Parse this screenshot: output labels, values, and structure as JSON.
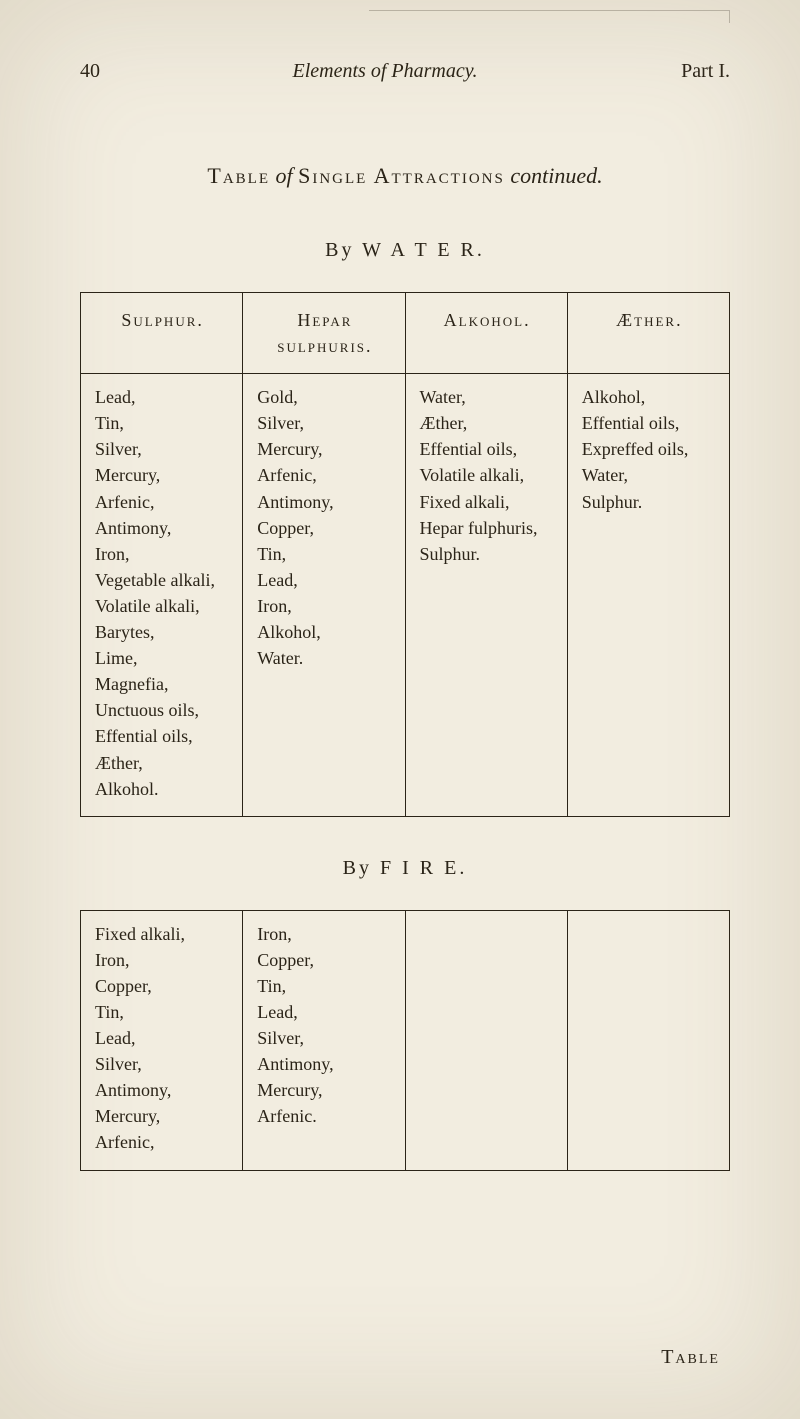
{
  "colors": {
    "paper": "#f2ede0",
    "ink": "#2b2418",
    "border": "#2b2418"
  },
  "header": {
    "page_number": "40",
    "running_title": "Elements of Pharmacy.",
    "part": "Part I."
  },
  "title": {
    "prefix": "Table",
    "of": "of",
    "subject": "Single Attractions",
    "suffix": "continued."
  },
  "tables": [
    {
      "by": "By  W A T E R.",
      "columns": [
        "Sulphur.",
        "Hepar sulphuris.",
        "Alkohol.",
        "Æther."
      ],
      "rows": [
        [
          "Lead,",
          "Gold,",
          "Water,",
          "Alkohol,"
        ],
        [
          "Tin,",
          "Silver,",
          "Æther,",
          "Effential oils,"
        ],
        [
          "Silver,",
          "Mercury,",
          "Effential oils,",
          "Expreffed oils,"
        ],
        [
          "Mercury,",
          "Arfenic,",
          "Volatile alkali,",
          "Water,"
        ],
        [
          "Arfenic,",
          "Antimony,",
          "Fixed alkali,",
          "Sulphur."
        ],
        [
          "Antimony,",
          "Copper,",
          "Hepar fulphuris,",
          ""
        ],
        [
          "Iron,",
          "Tin,",
          "Sulphur.",
          ""
        ],
        [
          "Vegetable alkali,",
          "Lead,",
          "",
          ""
        ],
        [
          "Volatile alkali,",
          "Iron,",
          "",
          ""
        ],
        [
          "Barytes,",
          "Alkohol,",
          "",
          ""
        ],
        [
          "Lime,",
          "Water.",
          "",
          ""
        ],
        [
          "Magnefia,",
          "",
          "",
          ""
        ],
        [
          "Unctuous oils,",
          "",
          "",
          ""
        ],
        [
          "Effential oils,",
          "",
          "",
          ""
        ],
        [
          "Æther,",
          "",
          "",
          ""
        ],
        [
          "Alkohol.",
          "",
          "",
          ""
        ]
      ]
    },
    {
      "by": "By  F I R E.",
      "columns": [
        "",
        "",
        "",
        ""
      ],
      "rows": [
        [
          "Fixed alkali,",
          "Iron,",
          "",
          ""
        ],
        [
          "Iron,",
          "Copper,",
          "",
          ""
        ],
        [
          "Copper,",
          "Tin,",
          "",
          ""
        ],
        [
          "Tin,",
          "Lead,",
          "",
          ""
        ],
        [
          "Lead,",
          "Silver,",
          "",
          ""
        ],
        [
          "Silver,",
          "Antimony,",
          "",
          ""
        ],
        [
          "Antimony,",
          "Mercury,",
          "",
          ""
        ],
        [
          "Mercury,",
          "Arfenic.",
          "",
          ""
        ],
        [
          "Arfenic,",
          "",
          "",
          ""
        ]
      ]
    }
  ],
  "footer": {
    "catchword": "Table"
  }
}
